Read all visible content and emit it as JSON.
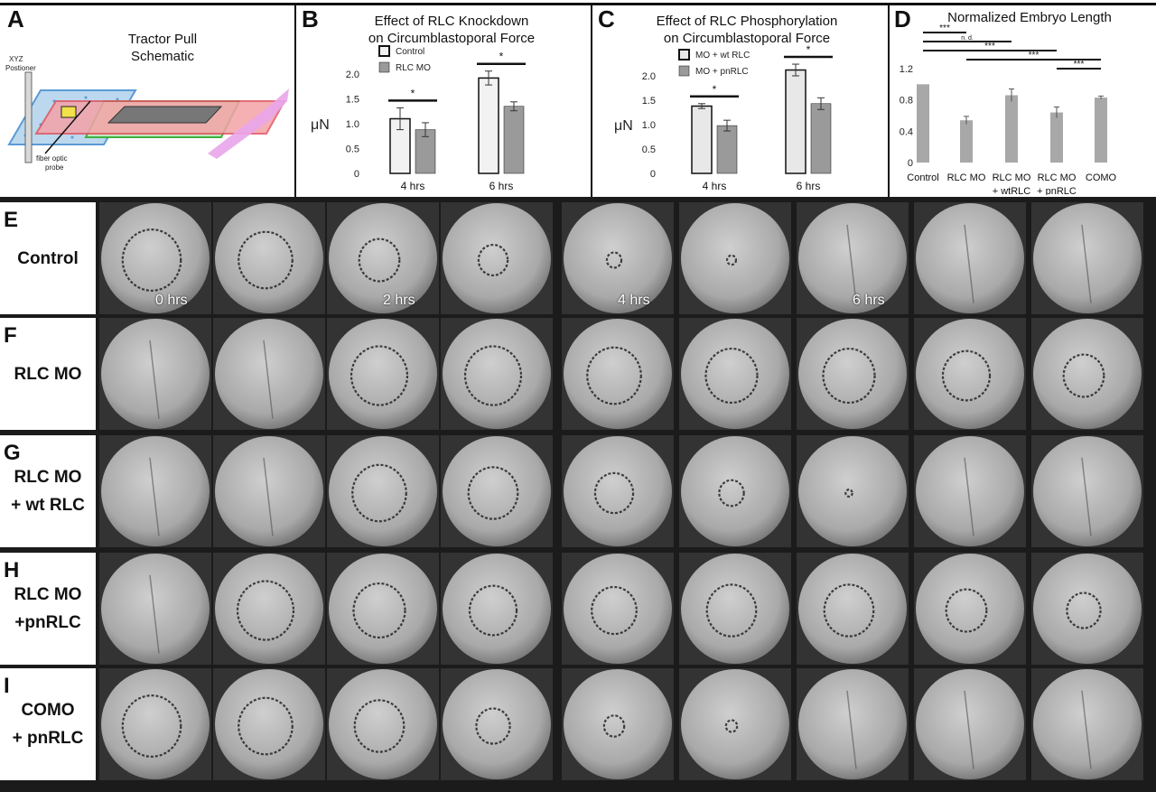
{
  "panels": {
    "A": {
      "letter": "A",
      "title": "Tractor Pull\nSchematic",
      "positioner_label": "XYZ\nPostioner",
      "probe_label": "fiber optic\nprobe"
    },
    "B": {
      "letter": "B",
      "title": "Effect of RLC Knockdown\non Circumblastoporal Force",
      "ylabel": "μN"
    },
    "C": {
      "letter": "C",
      "title": "Effect of RLC Phosphorylation\non Circumblastoporal Force",
      "ylabel": "μN"
    },
    "D": {
      "letter": "D",
      "title": "Normalized Embryo Length"
    }
  },
  "chart_data": [
    {
      "id": "B",
      "type": "bar",
      "title": "Effect of RLC Knockdown on Circumblastoporal Force",
      "ylabel": "μN",
      "categories": [
        "4 hrs",
        "6 hrs"
      ],
      "ylim": [
        0,
        2.0
      ],
      "yticks": [
        "0",
        "0.5",
        "1.0",
        "1.5",
        "2.0"
      ],
      "series": [
        {
          "name": "Control",
          "values": [
            1.1,
            1.92
          ],
          "errors": [
            0.22,
            0.14
          ],
          "color": "#f2f2f2"
        },
        {
          "name": "RLC MO",
          "values": [
            0.88,
            1.35
          ],
          "errors": [
            0.14,
            0.09
          ],
          "color": "#9a9a9a"
        }
      ],
      "significance": [
        "*",
        "*"
      ]
    },
    {
      "id": "C",
      "type": "bar",
      "title": "Effect of RLC Phosphorylation on Circumblastoporal Force",
      "ylabel": "μN",
      "categories": [
        "4 hrs",
        "6 hrs"
      ],
      "ylim": [
        0,
        2.0
      ],
      "yticks": [
        "0",
        "0.5",
        "1.0",
        "1.5",
        "2.0"
      ],
      "series": [
        {
          "name": "MO + wt RLC",
          "values": [
            1.38,
            2.12
          ],
          "errors": [
            0.05,
            0.12
          ],
          "color": "#e8e8e8"
        },
        {
          "name": "MO + pnRLC",
          "values": [
            0.98,
            1.43
          ],
          "errors": [
            0.11,
            0.12
          ],
          "color": "#9a9a9a"
        }
      ],
      "significance": [
        "*",
        "*"
      ]
    },
    {
      "id": "D",
      "type": "bar",
      "title": "Normalized Embryo Length",
      "categories": [
        "Control",
        "RLC MO",
        "RLC MO\n+ wtRLC",
        "RLC MO\n+ pnRLC",
        "COMO"
      ],
      "ylim": [
        0,
        1.2
      ],
      "yticks": [
        "0",
        "0.4",
        "0.8",
        "1.2"
      ],
      "values": [
        1.0,
        0.54,
        0.86,
        0.64,
        0.83
      ],
      "errors": [
        0.0,
        0.05,
        0.08,
        0.07,
        0.02
      ],
      "color": "#a8a8a8",
      "comparisons": [
        {
          "from": 0,
          "to": 1,
          "label": "***"
        },
        {
          "from": 0,
          "to": 2,
          "label": "n. d."
        },
        {
          "from": 0,
          "to": 3,
          "label": "***"
        },
        {
          "from": 1,
          "to": 4,
          "label": "***"
        },
        {
          "from": 3,
          "to": 4,
          "label": "***"
        }
      ]
    }
  ],
  "image_grid": {
    "rows": [
      {
        "letter": "E",
        "label": "Control"
      },
      {
        "letter": "F",
        "label": "RLC MO"
      },
      {
        "letter": "G",
        "label": "RLC MO\n+ wt RLC"
      },
      {
        "letter": "H",
        "label": "RLC MO\n+pnRLC"
      },
      {
        "letter": "I",
        "label": "COMO\n+ pnRLC"
      }
    ],
    "time_labels": [
      {
        "column": 0,
        "text": "0 hrs"
      },
      {
        "column": 2,
        "text": "2 hrs"
      },
      {
        "column": 4,
        "text": "4 hrs"
      },
      {
        "column": 6,
        "text": "6 hrs"
      }
    ],
    "blastopore_size": [
      [
        0.52,
        0.48,
        0.36,
        0.26,
        0.13,
        0.08,
        0.0,
        0.0,
        0.0
      ],
      [
        0.0,
        0.0,
        0.5,
        0.5,
        0.48,
        0.46,
        0.46,
        0.42,
        0.36
      ],
      [
        0.0,
        0.0,
        0.48,
        0.44,
        0.34,
        0.22,
        0.06,
        0.0,
        0.0
      ],
      [
        0.0,
        0.5,
        0.46,
        0.42,
        0.4,
        0.44,
        0.44,
        0.36,
        0.3
      ],
      [
        0.52,
        0.48,
        0.44,
        0.3,
        0.18,
        0.1,
        0.0,
        0.0,
        0.0
      ]
    ]
  }
}
